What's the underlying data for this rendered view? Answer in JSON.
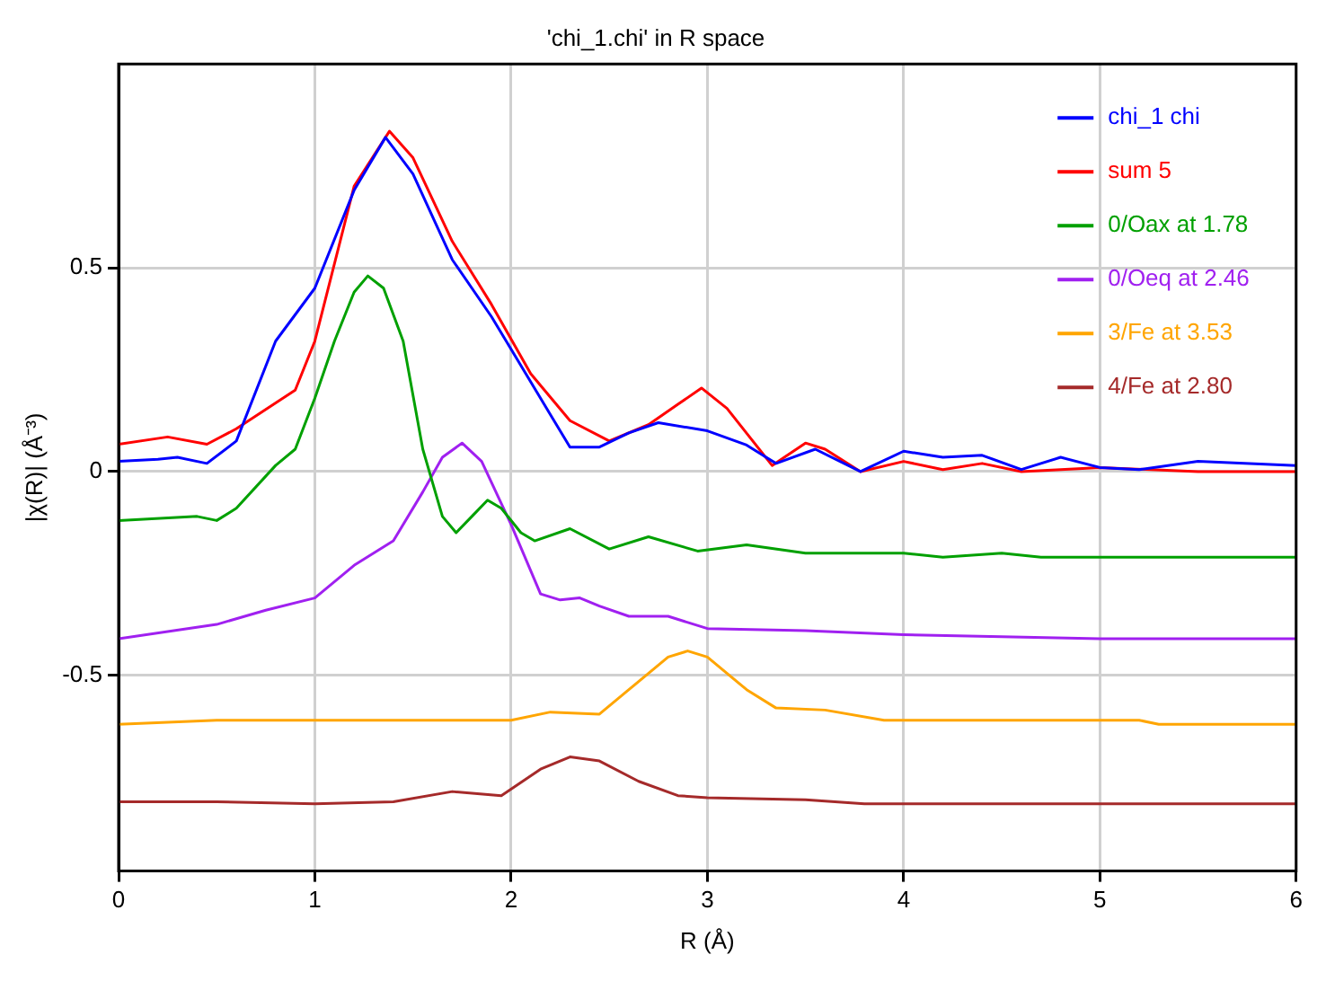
{
  "chart_data": {
    "type": "line",
    "title": "'chi_1.chi' in R space",
    "xlabel": "R (Å)",
    "ylabel": "|χ(R)| (Å⁻³)",
    "xlim": [
      0,
      6
    ],
    "xticks": [
      0,
      1,
      2,
      3,
      4,
      5,
      6
    ],
    "ylim": [
      -0.98,
      1.0
    ],
    "yticks": [
      -0.5,
      0,
      0.5
    ],
    "grid": true,
    "legend": "top right",
    "marker": "none",
    "line_style": "solid",
    "series": [
      {
        "name": "chi_1 chi",
        "color": "#0000ff",
        "x": [
          0,
          0.2,
          0.3,
          0.45,
          0.6,
          0.8,
          1.0,
          1.2,
          1.36,
          1.5,
          1.7,
          1.9,
          2.0,
          2.2,
          2.3,
          2.45,
          2.6,
          2.75,
          3.0,
          3.2,
          3.35,
          3.55,
          3.78,
          4.0,
          4.2,
          4.4,
          4.6,
          4.8,
          5.0,
          5.2,
          5.5,
          6.0
        ],
        "values": [
          0.025,
          0.03,
          0.035,
          0.02,
          0.075,
          0.32,
          0.45,
          0.69,
          0.82,
          0.73,
          0.52,
          0.38,
          0.3,
          0.14,
          0.06,
          0.06,
          0.095,
          0.12,
          0.1,
          0.065,
          0.02,
          0.055,
          0.0,
          0.05,
          0.035,
          0.04,
          0.005,
          0.035,
          0.01,
          0.005,
          0.025,
          0.015
        ]
      },
      {
        "name": "sum 5",
        "color": "#ff0000",
        "x": [
          0,
          0.25,
          0.45,
          0.6,
          0.9,
          1.0,
          1.2,
          1.38,
          1.5,
          1.7,
          1.9,
          2.1,
          2.3,
          2.5,
          2.7,
          2.85,
          2.97,
          3.1,
          3.33,
          3.5,
          3.6,
          3.78,
          4.0,
          4.2,
          4.4,
          4.6,
          5.0,
          5.5,
          6.0
        ],
        "values": [
          0.067,
          0.085,
          0.067,
          0.105,
          0.2,
          0.32,
          0.7,
          0.835,
          0.77,
          0.565,
          0.41,
          0.24,
          0.125,
          0.075,
          0.115,
          0.165,
          0.205,
          0.155,
          0.015,
          0.07,
          0.055,
          0.0,
          0.025,
          0.005,
          0.02,
          0.0,
          0.01,
          0.0,
          0.0
        ]
      },
      {
        "name": "0/Oax at 1.78",
        "color": "#00a000",
        "x": [
          0,
          0.4,
          0.5,
          0.6,
          0.8,
          0.9,
          1.0,
          1.1,
          1.2,
          1.27,
          1.35,
          1.45,
          1.55,
          1.65,
          1.72,
          1.8,
          1.88,
          1.95,
          2.05,
          2.12,
          2.3,
          2.5,
          2.7,
          2.95,
          3.2,
          3.5,
          4.0,
          4.2,
          4.5,
          4.7,
          6.0
        ],
        "values": [
          -0.12,
          -0.11,
          -0.12,
          -0.09,
          0.015,
          0.055,
          0.18,
          0.32,
          0.44,
          0.48,
          0.45,
          0.32,
          0.055,
          -0.11,
          -0.15,
          -0.11,
          -0.07,
          -0.09,
          -0.15,
          -0.17,
          -0.14,
          -0.19,
          -0.16,
          -0.195,
          -0.18,
          -0.2,
          -0.2,
          -0.21,
          -0.2,
          -0.21,
          -0.21
        ]
      },
      {
        "name": "0/Oeq at 2.46",
        "color": "#a020f0",
        "x": [
          0,
          0.5,
          0.75,
          1.0,
          1.2,
          1.4,
          1.55,
          1.65,
          1.75,
          1.85,
          2.0,
          2.15,
          2.25,
          2.35,
          2.45,
          2.6,
          2.8,
          3.0,
          3.5,
          4.0,
          4.5,
          5.0,
          6.0
        ],
        "values": [
          -0.41,
          -0.375,
          -0.34,
          -0.31,
          -0.23,
          -0.17,
          -0.05,
          0.035,
          0.07,
          0.025,
          -0.13,
          -0.3,
          -0.315,
          -0.31,
          -0.33,
          -0.355,
          -0.355,
          -0.385,
          -0.39,
          -0.4,
          -0.405,
          -0.41,
          -0.41
        ]
      },
      {
        "name": "3/Fe at 3.53",
        "color": "#ffa500",
        "x": [
          0,
          0.5,
          1.0,
          2.0,
          2.2,
          2.45,
          2.6,
          2.8,
          2.9,
          3.0,
          3.2,
          3.35,
          3.6,
          3.9,
          5.2,
          5.3,
          6.0
        ],
        "values": [
          -0.62,
          -0.61,
          -0.61,
          -0.61,
          -0.59,
          -0.595,
          -0.535,
          -0.455,
          -0.44,
          -0.455,
          -0.535,
          -0.58,
          -0.585,
          -0.61,
          -0.61,
          -0.62,
          -0.62
        ]
      },
      {
        "name": "4/Fe at 2.80",
        "color": "#a52a2a",
        "x": [
          0,
          0.5,
          1.0,
          1.4,
          1.7,
          1.95,
          2.15,
          2.3,
          2.45,
          2.65,
          2.85,
          3.0,
          3.5,
          3.8,
          6.0
        ],
        "values": [
          -0.81,
          -0.81,
          -0.815,
          -0.81,
          -0.785,
          -0.795,
          -0.73,
          -0.7,
          -0.71,
          -0.76,
          -0.795,
          -0.8,
          -0.805,
          -0.815,
          -0.815
        ]
      }
    ]
  }
}
